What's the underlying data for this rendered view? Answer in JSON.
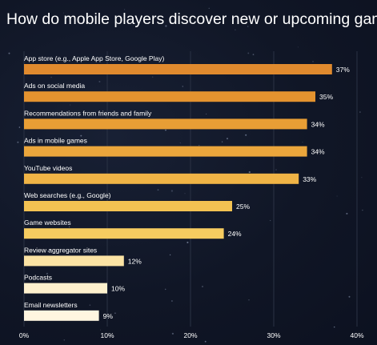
{
  "chart_data": {
    "type": "bar",
    "orientation": "horizontal",
    "title": "How do mobile players discover new or upcoming games?",
    "categories": [
      "App store (e.g., Apple App Store, Google Play)",
      "Ads on social media",
      "Recommendations from friends and family",
      "Ads in mobile games",
      "YouTube videos",
      "Web searches (e.g., Google)",
      "Game websites",
      "Review aggregator sites",
      "Podcasts",
      "Email newsletters"
    ],
    "values": [
      37,
      35,
      34,
      34,
      33,
      25,
      24,
      12,
      10,
      9
    ],
    "value_labels": [
      "37%",
      "35%",
      "34%",
      "34%",
      "33%",
      "25%",
      "24%",
      "12%",
      "10%",
      "9%"
    ],
    "xlim": [
      0,
      40
    ],
    "x_ticks": [
      0,
      10,
      20,
      30,
      40
    ],
    "x_tick_labels": [
      "0%",
      "10%",
      "20%",
      "30%",
      "40%"
    ],
    "xlabel": "",
    "ylabel": "",
    "grid": "vertical",
    "bar_colors": [
      "#e08a2e",
      "#e4932f",
      "#e89e35",
      "#eba63c",
      "#f0b446",
      "#f3c252",
      "#f6cc60",
      "#fbe3a4",
      "#fdf0cd",
      "#fff6e0"
    ],
    "text_color": "#ffffff",
    "gridline_color": "#2a3244"
  }
}
